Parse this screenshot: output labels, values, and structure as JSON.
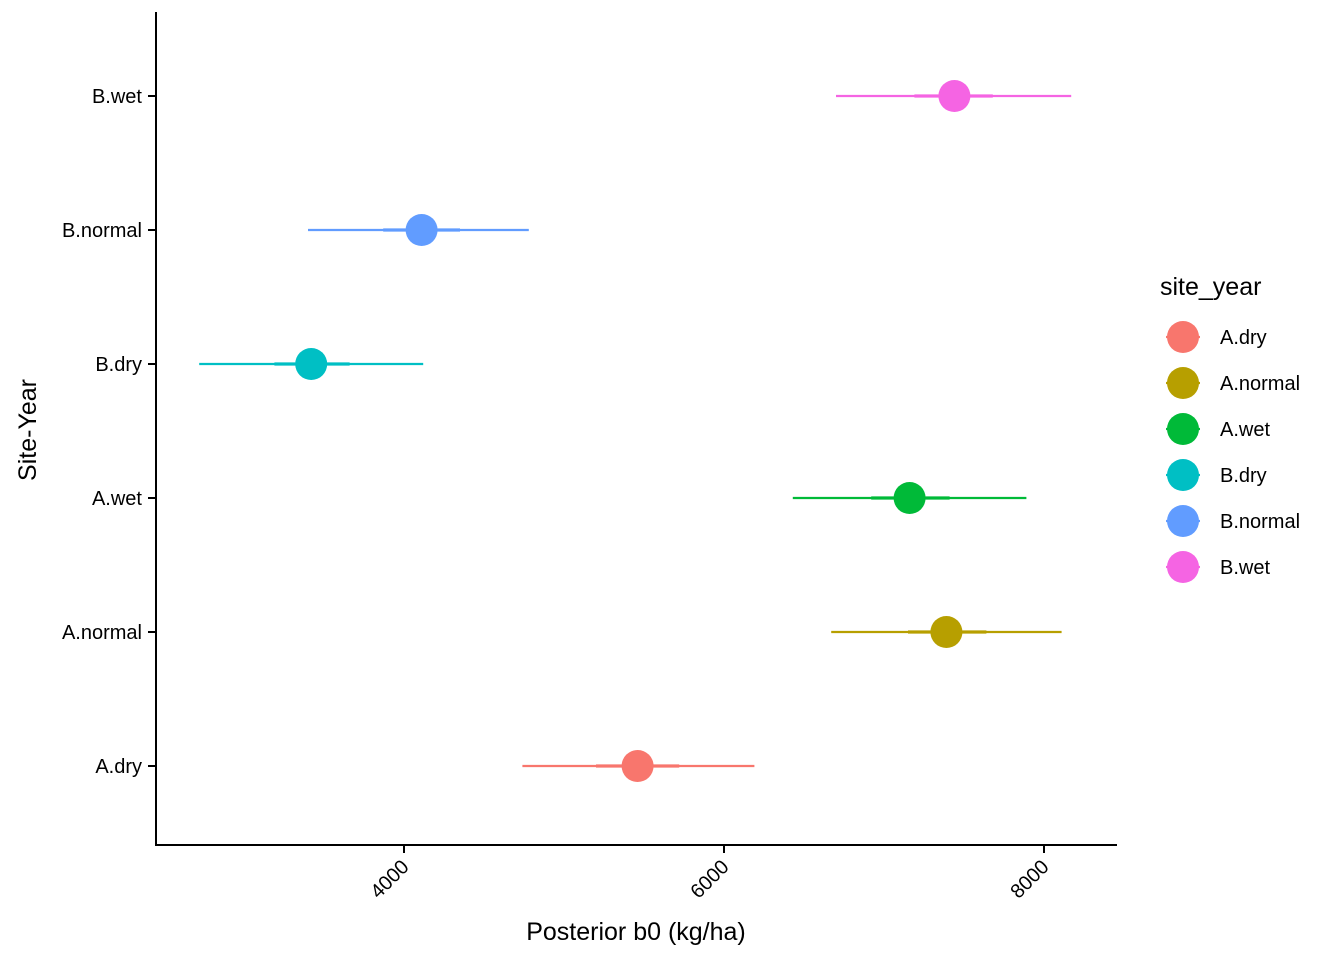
{
  "chart_data": {
    "type": "scatter",
    "subtype": "pointrange",
    "title": "",
    "xlabel": "Posterior b0 (kg/ha)",
    "ylabel": "Site-Year",
    "xlim": [
      2450,
      8450
    ],
    "x_ticks": [
      4000,
      6000,
      8000
    ],
    "x_tick_labels": [
      "4000",
      "6000",
      "8000"
    ],
    "x_tick_rotation": -45,
    "categories": [
      "A.dry",
      "A.normal",
      "A.wet",
      "B.dry",
      "B.normal",
      "B.wet"
    ],
    "grid": false,
    "legend": {
      "title": "site_year",
      "position": "right"
    },
    "series": [
      {
        "name": "A.dry",
        "color": "#F8766D",
        "median": 5460,
        "inner": [
          5200,
          5720
        ],
        "outer": [
          4740,
          6190
        ]
      },
      {
        "name": "A.normal",
        "color": "#B79F00",
        "median": 7390,
        "inner": [
          7150,
          7640
        ],
        "outer": [
          6670,
          8110
        ]
      },
      {
        "name": "A.wet",
        "color": "#00BA38",
        "median": 7160,
        "inner": [
          6920,
          7410
        ],
        "outer": [
          6430,
          7890
        ]
      },
      {
        "name": "B.dry",
        "color": "#00BFC4",
        "median": 3420,
        "inner": [
          3190,
          3660
        ],
        "outer": [
          2720,
          4120
        ]
      },
      {
        "name": "B.normal",
        "color": "#619CFF",
        "median": 4110,
        "inner": [
          3870,
          4350
        ],
        "outer": [
          3400,
          4780
        ]
      },
      {
        "name": "B.wet",
        "color": "#F564E3",
        "median": 7440,
        "inner": [
          7190,
          7680
        ],
        "outer": [
          6700,
          8170
        ]
      }
    ]
  }
}
